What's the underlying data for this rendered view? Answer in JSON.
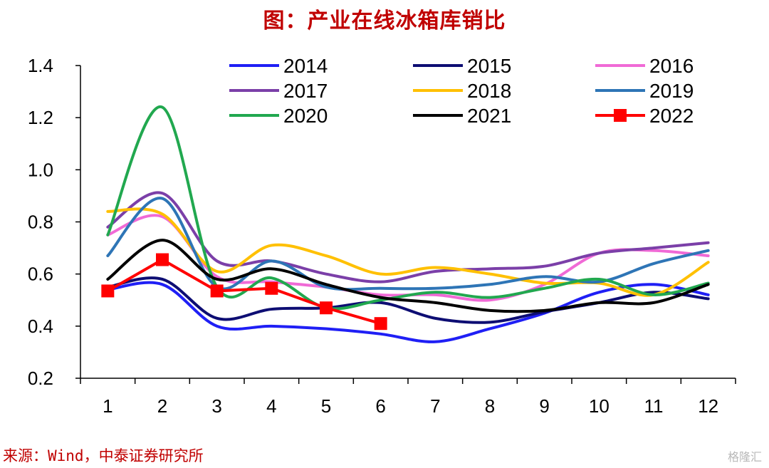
{
  "title": "图：产业在线冰箱库销比",
  "source": "来源：Wind，中泰证券研究所",
  "watermark": "格隆汇",
  "chart_data": {
    "type": "line",
    "title": "图：产业在线冰箱库销比",
    "xlabel": "",
    "ylabel": "",
    "categories": [
      1,
      2,
      3,
      4,
      5,
      6,
      7,
      8,
      9,
      10,
      11,
      12
    ],
    "ylim": [
      0.2,
      1.4
    ],
    "yticks": [
      "0.2",
      "0.4",
      "0.6",
      "0.8",
      "1.0",
      "1.2",
      "1.4"
    ],
    "grid": false,
    "legend": "top",
    "series": [
      {
        "name": "2014",
        "color": "#1f1ff5",
        "values": [
          0.54,
          0.56,
          0.4,
          0.4,
          0.39,
          0.37,
          0.34,
          0.39,
          0.45,
          0.53,
          0.56,
          0.52
        ]
      },
      {
        "name": "2015",
        "color": "#0d0d73",
        "values": [
          0.55,
          0.58,
          0.43,
          0.465,
          0.47,
          0.49,
          0.43,
          0.415,
          0.455,
          0.49,
          0.53,
          0.505
        ]
      },
      {
        "name": "2016",
        "color": "#f06ad6",
        "values": [
          0.75,
          0.82,
          0.59,
          0.57,
          0.55,
          0.52,
          0.52,
          0.5,
          0.56,
          0.68,
          0.69,
          0.67
        ]
      },
      {
        "name": "2017",
        "color": "#7b3fa8",
        "values": [
          0.78,
          0.91,
          0.65,
          0.65,
          0.6,
          0.57,
          0.61,
          0.62,
          0.63,
          0.68,
          0.7,
          0.72
        ]
      },
      {
        "name": "2018",
        "color": "#ffc000",
        "values": [
          0.84,
          0.83,
          0.61,
          0.71,
          0.67,
          0.6,
          0.625,
          0.6,
          0.565,
          0.565,
          0.52,
          0.645
        ]
      },
      {
        "name": "2019",
        "color": "#2e75b6",
        "values": [
          0.67,
          0.89,
          0.55,
          0.65,
          0.55,
          0.545,
          0.545,
          0.56,
          0.59,
          0.57,
          0.64,
          0.69
        ]
      },
      {
        "name": "2020",
        "color": "#21a84f",
        "values": [
          0.75,
          1.24,
          0.55,
          0.585,
          0.47,
          0.5,
          0.53,
          0.51,
          0.545,
          0.58,
          0.52,
          0.565
        ]
      },
      {
        "name": "2021",
        "color": "#000000",
        "values": [
          0.58,
          0.73,
          0.58,
          0.62,
          0.56,
          0.51,
          0.49,
          0.46,
          0.46,
          0.49,
          0.49,
          0.56
        ]
      },
      {
        "name": "2022",
        "color": "#ff0000",
        "marker": "square",
        "values": [
          0.535,
          0.655,
          0.535,
          0.545,
          0.47,
          0.41,
          null,
          null,
          null,
          null,
          null,
          null
        ]
      }
    ]
  }
}
